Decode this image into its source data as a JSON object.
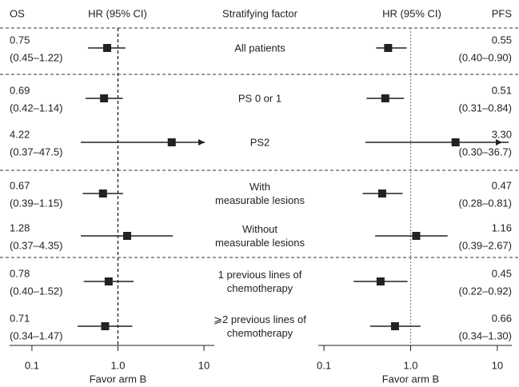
{
  "stratifying_factor": {
    "title": "Stratifying factor",
    "categories": [
      "All patients",
      "PS 0 or 1",
      "PS2",
      "With\nmeasurable lesions",
      "Without\nmeasurable lesions",
      "1 previous lines of\nchemotherapy",
      "⩾2 previous lines of\nchemotherapy"
    ]
  },
  "chart_data": [
    {
      "type": "forest",
      "title": "OS",
      "subtitle": "HR (95% CI)",
      "xlabel": "Favor arm B",
      "log_scale": true,
      "values": [
        0.75,
        0.69,
        4.22,
        0.67,
        1.28,
        0.78,
        0.71
      ],
      "value_labels": [
        "0.75",
        "0.69",
        "4.22",
        "0.67",
        "1.28",
        "0.78",
        "0.71"
      ],
      "lower": [
        0.45,
        0.42,
        0.37,
        0.39,
        0.37,
        0.4,
        0.34
      ],
      "upper": [
        1.22,
        1.14,
        47.5,
        1.15,
        4.35,
        1.52,
        1.47
      ],
      "ci_labels": [
        "(0.45–1.22)",
        "(0.42–1.14)",
        "(0.37–47.5)",
        "(0.39–1.15)",
        "(0.37–4.35)",
        "(0.40–1.52)",
        "(0.34–1.47)"
      ],
      "xlim": [
        0.055,
        13.2
      ],
      "xticks": [
        0.1,
        {
          "value": 1,
          "label": "1.0"
        },
        10
      ],
      "reference": 1,
      "reference_color": "#111",
      "reference_dash": "4,3",
      "color": "#222"
    },
    {
      "type": "forest",
      "title": "PFS",
      "subtitle": "HR (95% CI)",
      "xlabel": "Favor arm B",
      "log_scale": true,
      "values": [
        0.55,
        0.51,
        3.3,
        0.47,
        1.16,
        0.45,
        0.66
      ],
      "value_labels": [
        "0.55",
        "0.51",
        "3.30",
        "0.47",
        "1.16",
        "0.45",
        "0.66"
      ],
      "lower": [
        0.4,
        0.31,
        0.3,
        0.28,
        0.39,
        0.22,
        0.34
      ],
      "upper": [
        0.9,
        0.84,
        36.7,
        0.81,
        2.67,
        0.92,
        1.3
      ],
      "ci_labels": [
        "(0.40–0.90)",
        "(0.31–0.84)",
        "(0.30–36.7)",
        "(0.28–0.81)",
        "(0.39–2.67)",
        "(0.22–0.92)",
        "(0.34–1.30)"
      ],
      "xlim": [
        0.086,
        14.7
      ],
      "xticks": [
        0.1,
        {
          "value": 1,
          "label": "1.0"
        },
        10
      ],
      "reference": 1,
      "reference_color": "#888",
      "reference_dash": "2,2",
      "color": "#222"
    }
  ]
}
